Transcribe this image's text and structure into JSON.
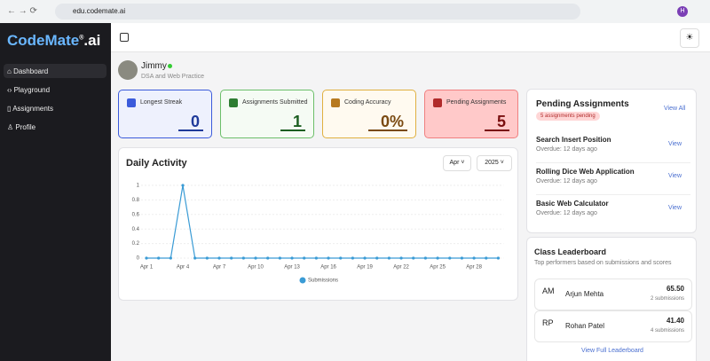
{
  "browser": {
    "url": "edu.codemate.ai",
    "profile": "H"
  },
  "sidebar": {
    "logo": [
      "CodeMate",
      "®",
      ".ai"
    ],
    "nav": [
      "Dashboard",
      "Playground",
      "Assignments",
      "Profile"
    ]
  },
  "user": {
    "name": "Jimmy",
    "subtitle": "DSA and Web Practice"
  },
  "stats": [
    {
      "label": "Longest Streak",
      "value": 0
    },
    {
      "label": "Assignments Submitted",
      "value": 1
    },
    {
      "label": "Coding Accuracy",
      "value": "0%"
    },
    {
      "label": "Pending Assignments",
      "value": 5
    }
  ],
  "filters": {
    "month": "Apr",
    "year": "2025"
  },
  "chart_data": {
    "type": "line",
    "title": "Daily Activity",
    "categories": [
      "Apr 1",
      null,
      null,
      "Apr 4",
      null,
      null,
      "Apr 7",
      null,
      null,
      "Apr 10",
      null,
      null,
      "Apr 13",
      null,
      null,
      "Apr 16",
      null,
      null,
      "Apr 19",
      null,
      null,
      "Apr 22",
      null,
      null,
      "Apr 25",
      null,
      null,
      "Apr 28",
      null,
      null
    ],
    "series": [
      {
        "name": "Submissions",
        "color": "#3a9bd5",
        "values": [
          0,
          0,
          0,
          1,
          0,
          0,
          0,
          0,
          0,
          0,
          0,
          0,
          0,
          0,
          0,
          0,
          0,
          0,
          0,
          0,
          0,
          0,
          0,
          0,
          0,
          0,
          0,
          0,
          0,
          0
        ]
      }
    ],
    "ylim": [
      0,
      1
    ],
    "yticks": [
      0,
      0.2,
      0.4,
      0.6,
      0.8,
      1
    ],
    "grid": true,
    "legend": "bottom"
  },
  "pending": {
    "title": "Pending Assignments",
    "badge": "5 assignments pending",
    "view_all": "View All",
    "items": [
      {
        "title": "Search Insert Position",
        "due": "Overdue: 12 days ago",
        "action": "View"
      },
      {
        "title": "Rolling Dice Web Application",
        "due": "Overdue: 12 days ago",
        "action": "View"
      },
      {
        "title": "Basic Web Calculator",
        "due": "Overdue: 12 days ago",
        "action": "View"
      }
    ]
  },
  "leaderboard": {
    "title": "Class Leaderboard",
    "subtitle": "Top performers based on submissions and scores",
    "entries": [
      {
        "initials": "AM",
        "name": "Arjun Mehta",
        "score": "65.50",
        "submissions": "2 submissions"
      },
      {
        "initials": "RP",
        "name": "Rohan Patel",
        "score": "41.40",
        "submissions": "4 submissions"
      }
    ],
    "footer": "View Full Leaderboard"
  }
}
